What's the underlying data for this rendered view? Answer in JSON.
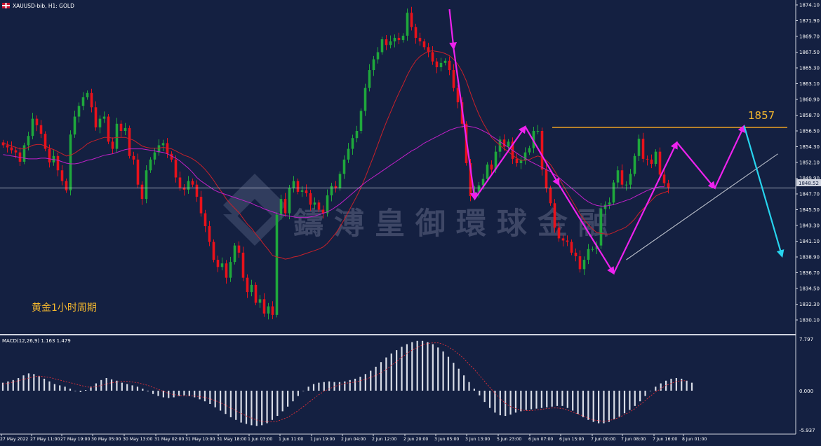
{
  "header": {
    "symbol_label": "XAUUSD-bib, H1:  GOLD",
    "flag_icon": "uk-flag-icon"
  },
  "annotation": {
    "cn_label": "黄金1小时周期",
    "level_label": "1857",
    "watermark": "鑄 溥 皇 御 環 球 金 融",
    "price_tag": "1848.52"
  },
  "macd": {
    "label": "MACD(12,26,9) 1.163 1.479",
    "axis_top": "7.797",
    "axis_zero": "0.000",
    "axis_bottom": "-5.937",
    "hist": [
      1.2,
      1.4,
      1.6,
      1.9,
      2.3,
      2.6,
      2.5,
      2.2,
      1.8,
      1.4,
      1.0,
      0.8,
      0.6,
      0.3,
      0.0,
      -0.2,
      0.1,
      0.6,
      1.1,
      1.6,
      1.9,
      1.7,
      1.5,
      1.2,
      1.0,
      0.8,
      0.6,
      0.3,
      -0.1,
      -0.5,
      -0.8,
      -1.0,
      -1.1,
      -1.0,
      -0.8,
      -0.7,
      -0.8,
      -1.0,
      -1.3,
      -1.6,
      -2.0,
      -2.5,
      -3.0,
      -3.5,
      -4.0,
      -4.4,
      -4.8,
      -5.0,
      -5.2,
      -5.3,
      -5.2,
      -4.9,
      -4.4,
      -3.8,
      -3.1,
      -2.4,
      -1.6,
      -0.8,
      0.0,
      0.6,
      1.0,
      1.2,
      1.3,
      1.4,
      1.3,
      1.3,
      1.4,
      1.6,
      1.8,
      2.1,
      2.5,
      3.0,
      3.6,
      4.3,
      5.0,
      5.6,
      6.1,
      6.6,
      7.0,
      7.3,
      7.5,
      7.5,
      7.3,
      7.0,
      6.5,
      5.9,
      5.1,
      4.2,
      3.3,
      2.3,
      1.3,
      0.3,
      -0.7,
      -1.7,
      -2.6,
      -3.3,
      -3.7,
      -3.8,
      -3.6,
      -3.3,
      -3.1,
      -2.9,
      -2.8,
      -2.7,
      -2.6,
      -2.5,
      -2.4,
      -2.3,
      -2.3,
      -2.6,
      -3.0,
      -3.5,
      -4.0,
      -4.4,
      -4.7,
      -4.9,
      -4.9,
      -4.7,
      -4.3,
      -3.9,
      -3.4,
      -2.9,
      -2.3,
      -1.6,
      -0.8,
      0.0,
      0.6,
      1.1,
      1.5,
      1.8,
      1.9,
      1.8,
      1.5,
      1.2
    ],
    "signal": [
      1.0,
      1.1,
      1.3,
      1.5,
      1.7,
      1.9,
      2.1,
      2.2,
      2.1,
      2.0,
      1.8,
      1.6,
      1.4,
      1.2,
      1.0,
      0.8,
      0.6,
      0.5,
      0.6,
      0.8,
      1.0,
      1.2,
      1.3,
      1.4,
      1.4,
      1.3,
      1.2,
      1.0,
      0.8,
      0.5,
      0.2,
      -0.1,
      -0.4,
      -0.6,
      -0.7,
      -0.8,
      -0.8,
      -0.8,
      -0.9,
      -1.0,
      -1.2,
      -1.5,
      -1.8,
      -2.2,
      -2.6,
      -3.0,
      -3.4,
      -3.8,
      -4.1,
      -4.4,
      -4.6,
      -4.7,
      -4.7,
      -4.6,
      -4.3,
      -4.0,
      -3.5,
      -3.0,
      -2.4,
      -1.8,
      -1.2,
      -0.6,
      -0.1,
      0.3,
      0.6,
      0.9,
      1.1,
      1.2,
      1.3,
      1.5,
      1.7,
      2.0,
      2.3,
      2.7,
      3.2,
      3.8,
      4.4,
      5.0,
      5.6,
      6.1,
      6.5,
      6.9,
      7.1,
      7.2,
      7.2,
      7.0,
      6.6,
      6.1,
      5.5,
      4.8,
      4.0,
      3.2,
      2.3,
      1.4,
      0.5,
      -0.4,
      -1.2,
      -1.9,
      -2.4,
      -2.7,
      -2.9,
      -3.0,
      -3.0,
      -2.9,
      -2.8,
      -2.7,
      -2.6,
      -2.6,
      -2.7,
      -2.9,
      -3.2,
      -3.5,
      -3.8,
      -4.1,
      -4.4,
      -4.5,
      -4.6,
      -4.5,
      -4.3,
      -4.0,
      -3.6,
      -3.2,
      -2.7,
      -2.1,
      -1.5,
      -0.8,
      -0.2,
      0.3,
      0.8,
      1.1,
      1.4,
      1.5,
      1.5
    ]
  },
  "chart_data": {
    "type": "candlestick",
    "symbol": "XAUUSD-bib",
    "timeframe": "H1",
    "ylim": [
      1828.5,
      1875.0
    ],
    "y_ticks": [
      "1874.10",
      "1871.90",
      "1869.70",
      "1867.50",
      "1865.30",
      "1863.10",
      "1860.90",
      "1858.70",
      "1856.50",
      "1854.30",
      "1852.10",
      "1849.90",
      "1847.70",
      "1845.50",
      "1843.30",
      "1841.10",
      "1838.90",
      "1836.70",
      "1834.50",
      "1832.30",
      "1830.10"
    ],
    "x_ticks": [
      "27 May 2022",
      "27 May 11:00",
      "27 May 19:00",
      "30 May 05:00",
      "30 May 13:00",
      "31 May 02:00",
      "31 May 10:00",
      "31 May 18:00",
      "1 Jun 03:00",
      "1 Jun 11:00",
      "1 Jun 19:00",
      "2 Jun 04:00",
      "2 Jun 12:00",
      "2 Jun 20:00",
      "3 Jun 05:00",
      "3 Jun 13:00",
      "5 Jun 23:00",
      "6 Jun 07:00",
      "6 Jun 15:00",
      "7 Jun 00:00",
      "7 Jun 08:00",
      "7 Jun 16:00",
      "8 Jun 01:00"
    ],
    "close": [
      1854.5,
      1854.2,
      1853.8,
      1853.5,
      1852.2,
      1854.5,
      1855.8,
      1858.2,
      1857.3,
      1856.1,
      1854.0,
      1852.1,
      1853.0,
      1851.0,
      1849.5,
      1848.2,
      1856.0,
      1858.5,
      1860.0,
      1861.2,
      1861.8,
      1859.8,
      1857.0,
      1858.2,
      1858.5,
      1855.0,
      1854.0,
      1857.5,
      1856.5,
      1856.9,
      1853.0,
      1852.5,
      1849.0,
      1847.0,
      1851.0,
      1852.5,
      1853.5,
      1854.5,
      1854.8,
      1853.3,
      1852.5,
      1850.0,
      1848.6,
      1848.3,
      1849.5,
      1849.0,
      1847.3,
      1845.0,
      1843.2,
      1841.0,
      1838.5,
      1837.5,
      1838.0,
      1836.0,
      1838.2,
      1840.5,
      1839.5,
      1836.0,
      1834.0,
      1835.0,
      1832.5,
      1833.0,
      1831.0,
      1832.0,
      1830.8,
      1844.8,
      1847.0,
      1845.0,
      1848.5,
      1849.5,
      1848.0,
      1848.2,
      1847.8,
      1846.2,
      1846.5,
      1845.5,
      1845.0,
      1847.5,
      1848.8,
      1848.5,
      1850.5,
      1852.5,
      1854.0,
      1855.5,
      1856.5,
      1859.3,
      1862.5,
      1865.0,
      1866.5,
      1867.5,
      1869.3,
      1868.5,
      1869.0,
      1869.5,
      1869.2,
      1869.8,
      1873.0,
      1871.0,
      1869.5,
      1869.0,
      1868.2,
      1867.5,
      1866.2,
      1865.4,
      1866.0,
      1866.3,
      1865.0,
      1862.5,
      1860.5,
      1857.5,
      1852.0,
      1847.4,
      1848.0,
      1848.9,
      1849.8,
      1851.8,
      1851.1,
      1853.6,
      1855.3,
      1854.3,
      1855.0,
      1852.6,
      1852.0,
      1852.4,
      1853.5,
      1854.1,
      1856.5,
      1856.5,
      1851.1,
      1848.5,
      1846.4,
      1843.0,
      1841.5,
      1841.2,
      1841.0,
      1839.5,
      1839.0,
      1837.2,
      1838.5,
      1840.0,
      1840.0,
      1840.5,
      1845.6,
      1846.2,
      1846.5,
      1849.3,
      1851.0,
      1849.0,
      1849.0,
      1850.5,
      1853.0,
      1855.4,
      1852.6,
      1852.5,
      1851.9,
      1853.6,
      1850.4,
      1849.2,
      1848.6
    ],
    "ma_red": [
      1854.8,
      1854.6,
      1854.4,
      1854.2,
      1854.0,
      1854.0,
      1854.2,
      1854.5,
      1854.6,
      1854.6,
      1854.4,
      1854.1,
      1853.9,
      1853.6,
      1853.3,
      1853.0,
      1853.1,
      1853.4,
      1853.8,
      1854.2,
      1854.7,
      1855.0,
      1855.2,
      1855.4,
      1855.6,
      1855.6,
      1855.5,
      1855.6,
      1855.6,
      1855.6,
      1855.4,
      1855.2,
      1854.8,
      1854.4,
      1854.2,
      1854.1,
      1854.1,
      1854.1,
      1854.2,
      1854.1,
      1854.0,
      1853.7,
      1853.4,
      1853.1,
      1852.9,
      1852.6,
      1852.2,
      1851.7,
      1851.1,
      1850.4,
      1849.6,
      1848.7,
      1847.9,
      1847.0,
      1846.3,
      1845.7,
      1845.1,
      1844.3,
      1843.5,
      1842.9,
      1842.1,
      1841.4,
      1840.6,
      1839.9,
      1839.1,
      1838.9,
      1838.8,
      1838.6,
      1838.7,
      1838.9,
      1839.0,
      1839.2,
      1839.4,
      1839.6,
      1839.8,
      1840.0,
      1840.3,
      1840.8,
      1841.5,
      1842.2,
      1843.1,
      1844.1,
      1845.2,
      1846.3,
      1847.4,
      1848.6,
      1850.0,
      1851.5,
      1853.0,
      1854.6,
      1856.2,
      1857.7,
      1859.1,
      1860.5,
      1861.8,
      1863.0,
      1864.3,
      1865.4,
      1866.3,
      1866.9,
      1867.3,
      1867.6,
      1867.7,
      1867.6,
      1867.5,
      1867.3,
      1867.0,
      1866.5,
      1865.8,
      1864.8,
      1863.5,
      1861.8,
      1860.2,
      1858.8,
      1857.6,
      1856.6,
      1855.6,
      1855.0,
      1854.5,
      1854.0,
      1853.6,
      1853.1,
      1852.7,
      1852.4,
      1852.4,
      1852.5,
      1852.8,
      1853.0,
      1852.8,
      1852.4,
      1851.8,
      1850.9,
      1849.9,
      1848.9,
      1847.9,
      1846.9,
      1845.9,
      1844.9,
      1844.1,
      1843.4,
      1842.8,
      1842.3,
      1842.2,
      1842.1,
      1842.1,
      1842.3,
      1842.6,
      1842.8,
      1843.1,
      1843.6,
      1844.2,
      1845.0,
      1845.6,
      1846.2,
      1846.8,
      1847.4,
      1847.7,
      1847.9,
      1848.1
    ],
    "ma_magenta": [
      1853.2,
      1853.1,
      1853.0,
      1852.9,
      1852.8,
      1852.7,
      1852.6,
      1852.6,
      1852.6,
      1852.7,
      1852.7,
      1852.6,
      1852.5,
      1852.4,
      1852.2,
      1852.0,
      1851.9,
      1851.9,
      1852.0,
      1852.2,
      1852.4,
      1852.5,
      1852.7,
      1852.9,
      1853.1,
      1853.2,
      1853.3,
      1853.5,
      1853.7,
      1853.9,
      1854.0,
      1854.0,
      1854.0,
      1854.0,
      1853.9,
      1853.8,
      1853.7,
      1853.6,
      1853.5,
      1853.3,
      1853.0,
      1852.7,
      1852.3,
      1851.8,
      1851.3,
      1850.7,
      1850.0,
      1849.5,
      1849.1,
      1848.7,
      1848.3,
      1848.0,
      1847.8,
      1847.6,
      1847.4,
      1847.2,
      1847.0,
      1846.8,
      1846.6,
      1846.4,
      1846.1,
      1845.9,
      1845.6,
      1845.4,
      1845.2,
      1845.0,
      1844.8,
      1844.7,
      1844.6,
      1844.5,
      1844.4,
      1844.4,
      1844.4,
      1844.5,
      1844.6,
      1844.8,
      1845.0,
      1845.2,
      1845.5,
      1845.9,
      1846.3,
      1846.8,
      1847.3,
      1847.8,
      1848.3,
      1848.8,
      1849.3,
      1849.7,
      1850.1,
      1850.5,
      1850.9,
      1851.3,
      1851.7,
      1852.1,
      1852.5,
      1852.9,
      1853.3,
      1853.7,
      1854.0,
      1854.4,
      1854.8,
      1855.1,
      1855.4,
      1855.7,
      1856.0,
      1856.3,
      1856.6,
      1856.8,
      1857.0,
      1857.1,
      1857.2,
      1857.1,
      1857.0,
      1856.8,
      1856.5,
      1856.2,
      1855.8,
      1855.4,
      1855.0,
      1854.6,
      1854.2,
      1853.8,
      1853.4,
      1853.0,
      1852.7,
      1852.3,
      1852.0,
      1851.7,
      1851.4,
      1851.1,
      1850.8,
      1850.4,
      1850.0,
      1849.5,
      1849.0,
      1848.5,
      1848.0,
      1847.5,
      1847.0,
      1846.6,
      1846.3,
      1846.1,
      1846.0,
      1846.0,
      1846.1,
      1846.2,
      1846.4,
      1846.6,
      1846.8,
      1847.0,
      1847.3,
      1847.6,
      1847.9,
      1848.2,
      1848.4,
      1848.6,
      1848.7,
      1848.7
    ],
    "support_price": 1857.0,
    "current_price": 1848.52,
    "zigzag": [
      [
        106,
        1873.5
      ],
      [
        107,
        1868.0
      ],
      [
        112,
        1847.0
      ],
      [
        124,
        1857.1
      ],
      [
        132,
        1849.0
      ],
      [
        145,
        1836.6
      ],
      [
        160,
        1854.9
      ],
      [
        169,
        1848.5
      ]
    ],
    "projection": [
      [
        169,
        1848.5
      ],
      [
        176,
        1857.2
      ],
      [
        185,
        1839.0
      ]
    ],
    "trendline": [
      [
        148,
        1838.5
      ],
      [
        184,
        1853.3
      ]
    ]
  }
}
